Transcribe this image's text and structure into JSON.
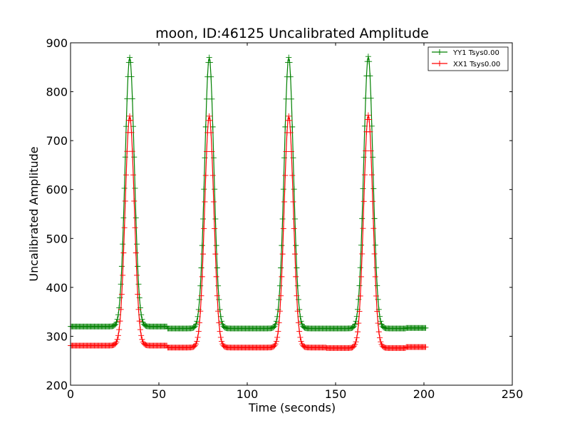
{
  "chart_data": {
    "type": "line",
    "title": "moon, ID:46125 Uncalibrated Amplitude",
    "xlabel": "Time (seconds)",
    "ylabel": "Uncalibrated Amplitude",
    "xlim": [
      0,
      250
    ],
    "ylim": [
      200,
      900
    ],
    "xticks": [
      0,
      50,
      100,
      150,
      200,
      250
    ],
    "yticks": [
      200,
      300,
      400,
      500,
      600,
      700,
      800,
      900
    ],
    "grid": false,
    "legend_position": "top-right",
    "marker": "plus",
    "series": [
      {
        "name": "YY1 Tsys0.00",
        "color": "#008000",
        "baseline_levels": [
          320,
          316,
          316,
          316,
          317
        ],
        "peaks": [
          {
            "center": 33.5,
            "height": 870
          },
          {
            "center": 78.5,
            "height": 870
          },
          {
            "center": 123.5,
            "height": 870
          },
          {
            "center": 168.5,
            "height": 872
          }
        ],
        "x_start": 0,
        "x_end": 201
      },
      {
        "name": "XX1 Tsys0.00",
        "color": "#ff0000",
        "baseline_levels": [
          281,
          277,
          277,
          276,
          278
        ],
        "peaks": [
          {
            "center": 33.5,
            "height": 750
          },
          {
            "center": 78.5,
            "height": 750
          },
          {
            "center": 123.5,
            "height": 750
          },
          {
            "center": 168.5,
            "height": 752
          }
        ],
        "x_start": 0,
        "x_end": 201
      }
    ]
  }
}
